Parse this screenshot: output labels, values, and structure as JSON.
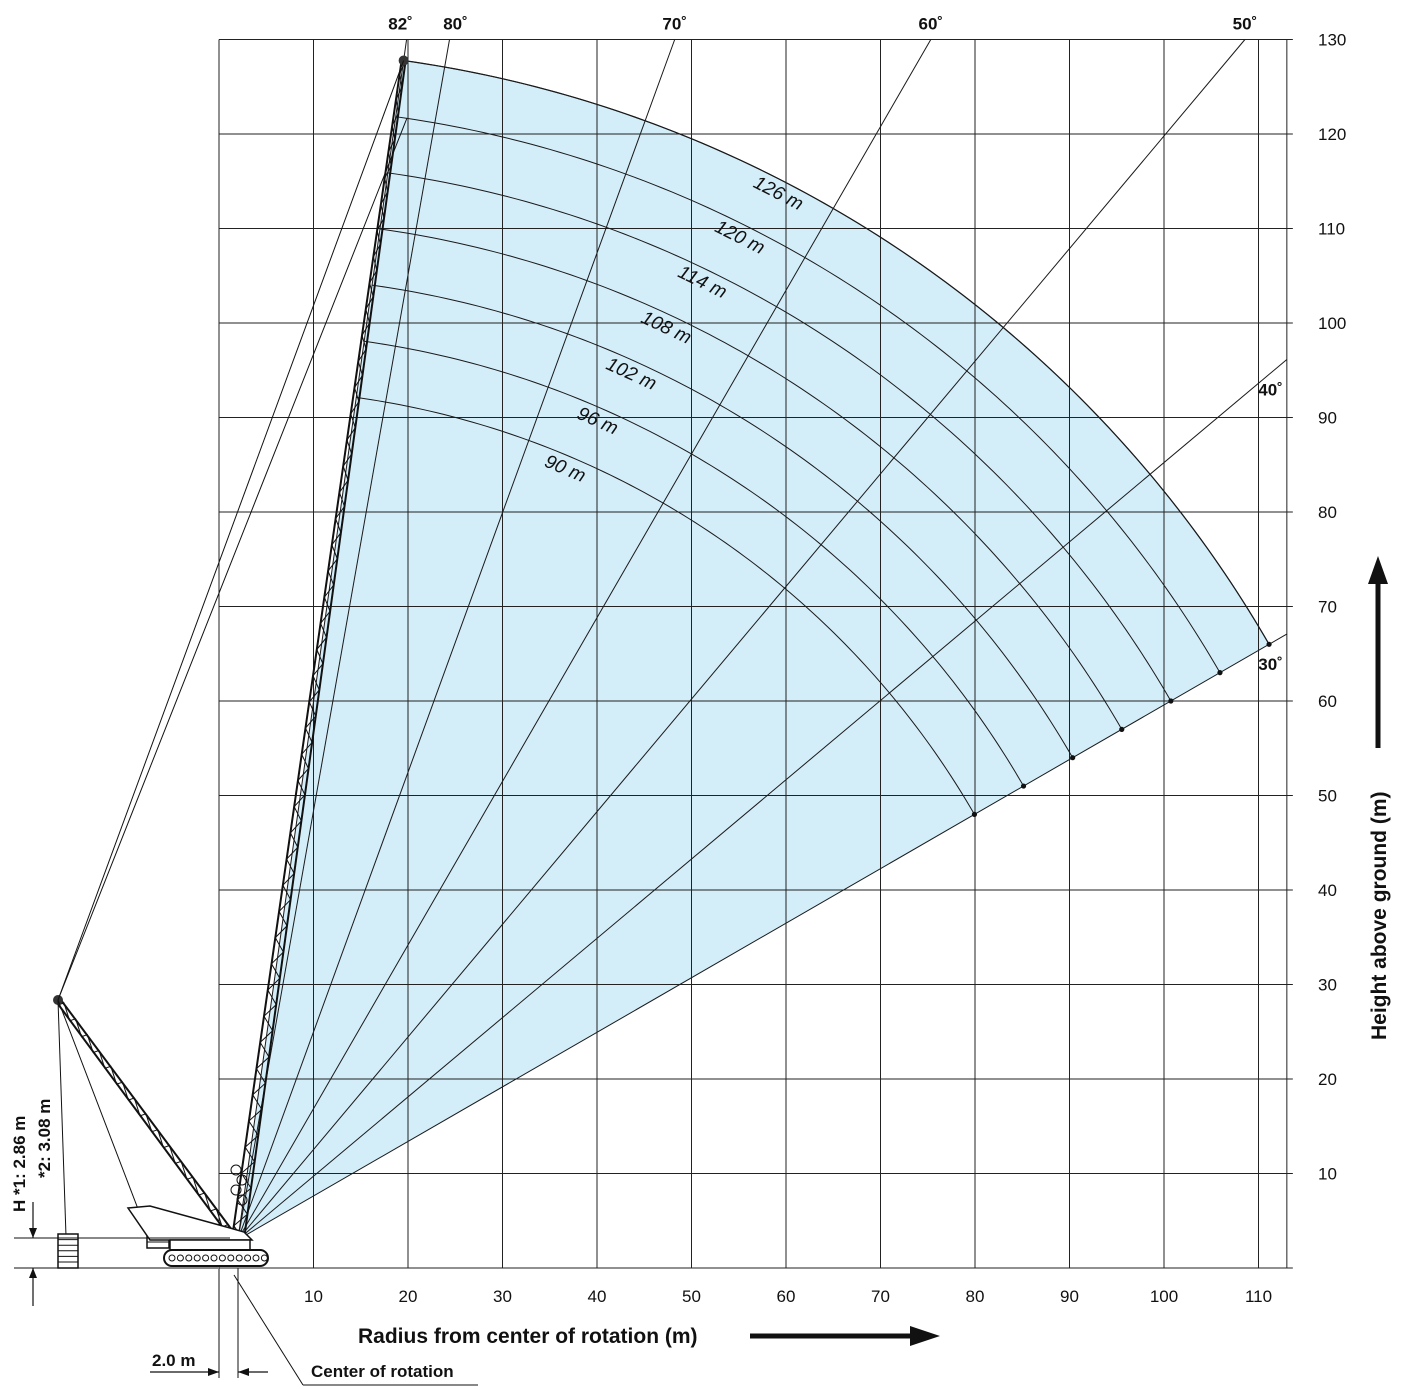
{
  "chart_data": {
    "type": "working-range",
    "title": "",
    "xlabel": "Radius from center of rotation (m)",
    "ylabel": "Height above ground (m)",
    "xlim": [
      -2,
      113
    ],
    "ylim": [
      0,
      130
    ],
    "x_ticks": [
      10,
      20,
      30,
      40,
      50,
      60,
      70,
      80,
      90,
      100,
      110
    ],
    "y_ticks": [
      10,
      20,
      30,
      40,
      50,
      60,
      70,
      80,
      90,
      100,
      110,
      120,
      130
    ],
    "grid": true,
    "pivot": [
      2.0,
      3.0
    ],
    "angle_lines": [
      {
        "label": "82˚",
        "angle": 82
      },
      {
        "label": "80˚",
        "angle": 80
      },
      {
        "label": "70˚",
        "angle": 70
      },
      {
        "label": "60˚",
        "angle": 60
      },
      {
        "label": "50˚",
        "angle": 50
      },
      {
        "label": "40˚",
        "angle": 40
      },
      {
        "label": "30˚",
        "angle": 30
      }
    ],
    "boom_curves": [
      {
        "label": "90 m",
        "length": 90
      },
      {
        "label": "96 m",
        "length": 96
      },
      {
        "label": "102 m",
        "length": 102
      },
      {
        "label": "108 m",
        "length": 108
      },
      {
        "label": "114 m",
        "length": 114
      },
      {
        "label": "120 m",
        "length": 120
      },
      {
        "label": "126 m",
        "length": 126
      }
    ],
    "min_angle": 30,
    "max_angle": 82,
    "colors": {
      "fill": "#d3edf9",
      "line": "#1a1a1a",
      "grid": "#222222"
    }
  },
  "annotations": {
    "h_label_1": "H *1: 2.86 m",
    "h_label_2": "*2: 3.08 m",
    "offset_label": "2.0 m",
    "center_label": "Center of rotation"
  }
}
